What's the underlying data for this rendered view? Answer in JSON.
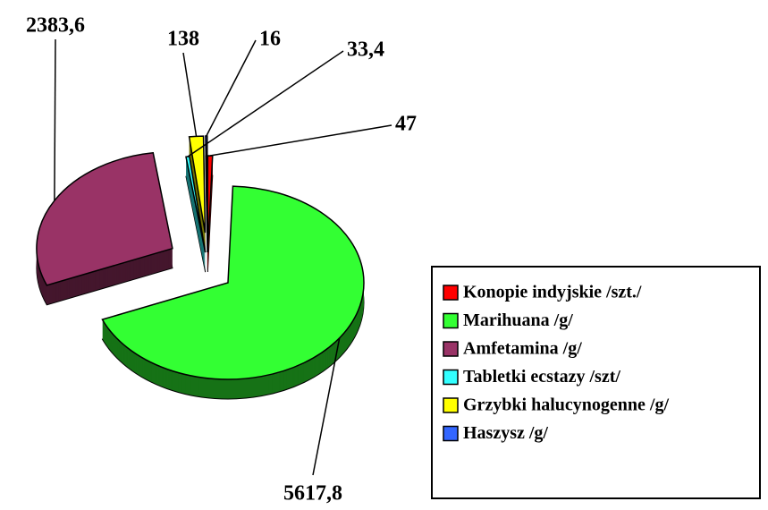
{
  "chart_data": {
    "type": "pie",
    "categories": [
      "Konopie indyjskie /szt./",
      "Marihuana /g/",
      "Amfetamina /g/",
      "Tabletki ecstazy /szt/",
      "Grzybki halucynogenne /g/",
      "Haszysz /g/"
    ],
    "values": [
      47,
      5617.8,
      2383.6,
      33.4,
      138,
      16
    ],
    "value_labels": [
      "47",
      "5617,8",
      "2383,6",
      "33,4",
      "138",
      "16"
    ],
    "colors": [
      "#ff0000",
      "#33ff33",
      "#993366",
      "#33ffff",
      "#ffff00",
      "#3366ff"
    ],
    "legend": "right"
  }
}
